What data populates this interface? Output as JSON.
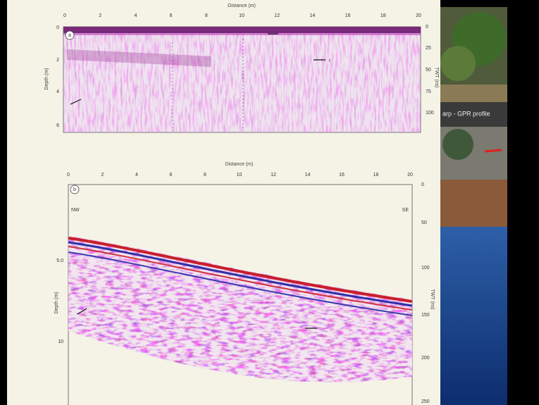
{
  "panel_a": {
    "x_axis_title": "Distance (m)",
    "x_ticks": [
      "0",
      "2",
      "4",
      "6",
      "8",
      "10",
      "12",
      "14",
      "16",
      "18",
      "20"
    ],
    "label": "a",
    "y_axis_title": "Depth (m)",
    "y_ticks": [
      "0",
      "2",
      "4",
      "6"
    ],
    "y2_axis_title": "TWT (ns)",
    "y2_ticks": [
      "0",
      "25",
      "50",
      "75",
      "100"
    ],
    "annotation": "r"
  },
  "panel_b": {
    "x_axis_title": "Distance (m)",
    "x_ticks": [
      "0",
      "2",
      "4",
      "6",
      "8",
      "10",
      "12",
      "14",
      "16",
      "18",
      "20"
    ],
    "label": "b",
    "left_corner": "NW",
    "right_corner": "SE",
    "y_axis_title": "Depth (m)",
    "y_ticks": [
      "5.0",
      "10"
    ],
    "y2_axis_title": "TWT (ns)",
    "y2_ticks": [
      "0",
      "50",
      "100",
      "150",
      "200",
      "250"
    ]
  },
  "side_panel": {
    "caption": "arp - GPR profile"
  }
}
